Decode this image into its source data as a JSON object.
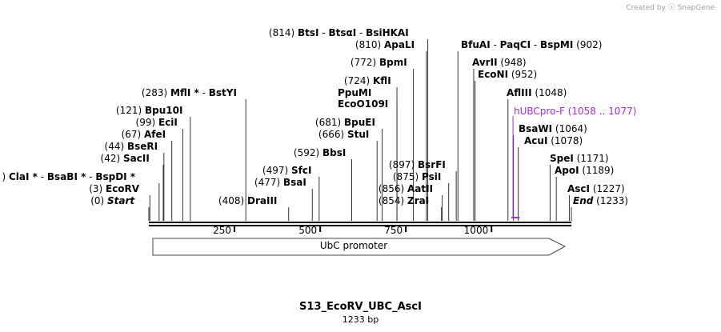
{
  "credit": "Created by ⓢ SnapGene",
  "title": "S13_EcoRV_UBC_AscI",
  "subtitle": "1233 bp",
  "backbone": {
    "total_bp": 1233
  },
  "ticks": [
    {
      "pos": 250,
      "label": "250"
    },
    {
      "pos": 500,
      "label": "500"
    },
    {
      "pos": 750,
      "label": "750"
    },
    {
      "pos": 1000,
      "label": "1000"
    }
  ],
  "feature": {
    "label": "UbC promoter",
    "start": 1,
    "end": 1227
  },
  "primer": {
    "name": "hUBCpro-F",
    "range": "(1058 .. 1077)",
    "start": 1058,
    "end": 1077,
    "color": "#a030d0"
  },
  "sites": [
    {
      "id": "bts",
      "names": [
        "BtsI",
        "BtsαI",
        "BsiHKAI"
      ],
      "pos_text": "(814)",
      "pos": 814,
      "pos_side": "left"
    },
    {
      "id": "apali",
      "names": [
        "ApaLI"
      ],
      "pos_text": "(810)",
      "pos": 810,
      "pos_side": "left"
    },
    {
      "id": "bpmi",
      "names": [
        "BpmI"
      ],
      "pos_text": "(772)",
      "pos": 772,
      "pos_side": "left"
    },
    {
      "id": "kfli",
      "names": [
        "KflI"
      ],
      "pos_text": "(724)",
      "pos": 724,
      "pos_side": "left"
    },
    {
      "id": "ppumi",
      "names": [
        "PpuMI"
      ],
      "pos_text": "",
      "pos": 724,
      "pos_side": "left"
    },
    {
      "id": "ecoo109i",
      "names": [
        "EcoO109I"
      ],
      "pos_text": "",
      "pos": 724,
      "pos_side": "left"
    },
    {
      "id": "bpuei",
      "names": [
        "BpuEI"
      ],
      "pos_text": "(681)",
      "pos": 681,
      "pos_side": "left"
    },
    {
      "id": "stui",
      "names": [
        "StuI"
      ],
      "pos_text": "(666)",
      "pos": 666,
      "pos_side": "left"
    },
    {
      "id": "bbsi",
      "names": [
        "BbsI"
      ],
      "pos_text": "(592)",
      "pos": 592,
      "pos_side": "left"
    },
    {
      "id": "sfci",
      "names": [
        "SfcI"
      ],
      "pos_text": "(497)",
      "pos": 497,
      "pos_side": "left"
    },
    {
      "id": "bsai",
      "names": [
        "BsaI"
      ],
      "pos_text": "(477)",
      "pos": 477,
      "pos_side": "left"
    },
    {
      "id": "draiii",
      "names": [
        "DraIII"
      ],
      "pos_text": "(408)",
      "pos": 408,
      "pos_side": "left"
    },
    {
      "id": "mfli",
      "names": [
        "MflI *",
        "BstYI"
      ],
      "pos_text": "(283)",
      "pos": 283,
      "pos_side": "left"
    },
    {
      "id": "bpu10i",
      "names": [
        "Bpu10I"
      ],
      "pos_text": "(121)",
      "pos": 121,
      "pos_side": "left"
    },
    {
      "id": "ecii",
      "names": [
        "EciI"
      ],
      "pos_text": "(99)",
      "pos": 99,
      "pos_side": "left"
    },
    {
      "id": "afei",
      "names": [
        "AfeI"
      ],
      "pos_text": "(67)",
      "pos": 67,
      "pos_side": "left"
    },
    {
      "id": "bseri",
      "names": [
        "BseRI"
      ],
      "pos_text": "(44)",
      "pos": 44,
      "pos_side": "left"
    },
    {
      "id": "sacii",
      "names": [
        "SacII"
      ],
      "pos_text": "(42)",
      "pos": 42,
      "pos_side": "left"
    },
    {
      "id": "clai",
      "names": [
        "ClaI *",
        "BsaBI *",
        "BspDI *"
      ],
      "pos_text": ")",
      "pos": 30,
      "pos_side": "left"
    },
    {
      "id": "ecorv",
      "names": [
        "EcoRV"
      ],
      "pos_text": "(3)",
      "pos": 3,
      "pos_side": "left"
    },
    {
      "id": "start",
      "names": [
        "Start"
      ],
      "pos_text": "(0)",
      "pos": 0,
      "pos_side": "left",
      "italic": true
    },
    {
      "id": "bfuai",
      "names": [
        "BfuAI",
        "PaqCI",
        "BspMI"
      ],
      "pos_text": "(902)",
      "pos": 902,
      "pos_side": "right"
    },
    {
      "id": "avrii",
      "names": [
        "AvrII"
      ],
      "pos_text": "(948)",
      "pos": 948,
      "pos_side": "right"
    },
    {
      "id": "econi",
      "names": [
        "EcoNI"
      ],
      "pos_text": "(952)",
      "pos": 952,
      "pos_side": "right"
    },
    {
      "id": "aflii",
      "names": [
        "AflIII"
      ],
      "pos_text": "(1048)",
      "pos": 1048,
      "pos_side": "right"
    },
    {
      "id": "bsawi",
      "names": [
        "BsaWI"
      ],
      "pos_text": "(1064)",
      "pos": 1064,
      "pos_side": "right"
    },
    {
      "id": "acui",
      "names": [
        "AcuI"
      ],
      "pos_text": "(1078)",
      "pos": 1078,
      "pos_side": "right"
    },
    {
      "id": "spei",
      "names": [
        "SpeI"
      ],
      "pos_text": "(1171)",
      "pos": 1171,
      "pos_side": "right"
    },
    {
      "id": "apoi",
      "names": [
        "ApoI"
      ],
      "pos_text": "(1189)",
      "pos": 1189,
      "pos_side": "right"
    },
    {
      "id": "asci",
      "names": [
        "AscI"
      ],
      "pos_text": "(1227)",
      "pos": 1227,
      "pos_side": "right"
    },
    {
      "id": "end",
      "names": [
        "End"
      ],
      "pos_text": "(1233)",
      "pos": 1233,
      "pos_side": "right",
      "italic": true
    },
    {
      "id": "bsrfi",
      "names": [
        "BsrFI"
      ],
      "pos_text": "(897)",
      "pos": 897,
      "pos_side": "left"
    },
    {
      "id": "psii",
      "names": [
        "PsiI"
      ],
      "pos_text": "(875)",
      "pos": 875,
      "pos_side": "left"
    },
    {
      "id": "aatii",
      "names": [
        "AatII"
      ],
      "pos_text": "(856)",
      "pos": 856,
      "pos_side": "left"
    },
    {
      "id": "zrai",
      "names": [
        "ZraI"
      ],
      "pos_text": "(854)",
      "pos": 854,
      "pos_side": "left"
    }
  ]
}
